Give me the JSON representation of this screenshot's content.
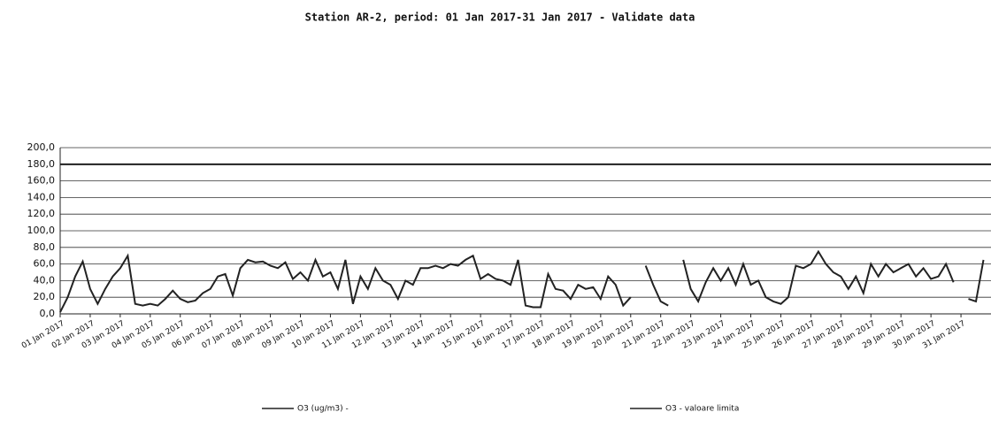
{
  "chart_data": {
    "type": "line",
    "title": "Station AR-2, period: 01 Jan 2017-31 Jan 2017 - Validate data",
    "categories": [
      "01 Jan 2017",
      null,
      null,
      null,
      "02 Jan 2017",
      null,
      null,
      null,
      "03 Jan 2017",
      null,
      null,
      null,
      "04 Jan 2017",
      null,
      null,
      null,
      "05 Jan 2017",
      null,
      null,
      null,
      "06 Jan 2017",
      null,
      null,
      null,
      "07 Jan 2017",
      null,
      null,
      null,
      "08 Jan 2017",
      null,
      null,
      null,
      "09 Jan 2017",
      null,
      null,
      null,
      "10 Jan 2017",
      null,
      null,
      null,
      "11 Jan 2017",
      null,
      null,
      null,
      "12 Jan 2017",
      null,
      null,
      null,
      "13 Jan 2017",
      null,
      null,
      null,
      "14 Jan 2017",
      null,
      null,
      null,
      "15 Jan 2017",
      null,
      null,
      null,
      "16 Jan 2017",
      null,
      null,
      null,
      "17 Jan 2017",
      null,
      null,
      null,
      "18 Jan 2017",
      null,
      null,
      null,
      "19 Jan 2017",
      null,
      null,
      null,
      "20 Jan 2017",
      null,
      null,
      null,
      "21 Jan 2017",
      null,
      null,
      null,
      "22 Jan 2017",
      null,
      null,
      null,
      "23 Jan 2017",
      null,
      null,
      null,
      "24 Jan 2017",
      null,
      null,
      null,
      "25 Jan 2017",
      null,
      null,
      null,
      "26 Jan 2017",
      null,
      null,
      null,
      "27 Jan 2017",
      null,
      null,
      null,
      "28 Jan 2017",
      null,
      null,
      null,
      "29 Jan 2017",
      null,
      null,
      null,
      "30 Jan 2017",
      null,
      null,
      null,
      "31 Jan 2017",
      null,
      null,
      null
    ],
    "series": [
      {
        "name": "O3 (ug/m3) -",
        "color": "#222222",
        "values": [
          2,
          20,
          45,
          63,
          30,
          12,
          30,
          45,
          55,
          70,
          12,
          10,
          12,
          10,
          18,
          28,
          18,
          14,
          16,
          25,
          30,
          45,
          48,
          22,
          55,
          65,
          62,
          63,
          58,
          55,
          62,
          42,
          50,
          40,
          65,
          45,
          50,
          30,
          65,
          12,
          45,
          30,
          55,
          40,
          35,
          18,
          40,
          35,
          55,
          55,
          58,
          55,
          60,
          58,
          65,
          70,
          42,
          48,
          42,
          40,
          35,
          65,
          10,
          8,
          8,
          48,
          30,
          28,
          18,
          35,
          30,
          32,
          18,
          45,
          35,
          10,
          20,
          null,
          58,
          35,
          15,
          10,
          null,
          65,
          30,
          15,
          38,
          55,
          40,
          55,
          35,
          60,
          35,
          40,
          20,
          15,
          12,
          20,
          58,
          55,
          60,
          75,
          60,
          50,
          45,
          30,
          45,
          25,
          60,
          45,
          60,
          50,
          55,
          60,
          45,
          55,
          42,
          45,
          60,
          38,
          null,
          18,
          15,
          65
        ]
      }
    ],
    "reference_line": {
      "name": "O3 - valoare limita",
      "value": 180
    },
    "ylim": [
      0,
      200
    ],
    "yticks": [
      {
        "value": 0,
        "label": "0,0"
      },
      {
        "value": 20,
        "label": "20,0"
      },
      {
        "value": 40,
        "label": "40,0"
      },
      {
        "value": 60,
        "label": "60,0"
      },
      {
        "value": 80,
        "label": "80,0"
      },
      {
        "value": 100,
        "label": "100,0"
      },
      {
        "value": 120,
        "label": "120,0"
      },
      {
        "value": 140,
        "label": "140,0"
      },
      {
        "value": 160,
        "label": "160,0"
      },
      {
        "value": 180,
        "label": "180,0"
      },
      {
        "value": 200,
        "label": "200,0"
      }
    ],
    "grid": true
  }
}
